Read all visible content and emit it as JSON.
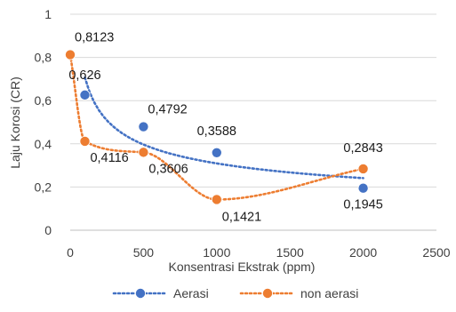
{
  "chart_data": {
    "type": "scatter",
    "xlabel": "Konsentrasi Ekstrak (ppm)",
    "ylabel": "Laju Korosi (CR)",
    "xlim": [
      0,
      2500
    ],
    "ylim": [
      0,
      1
    ],
    "x_ticks": [
      0,
      500,
      1000,
      1500,
      2000,
      2500
    ],
    "x_tick_labels": [
      "0",
      "500",
      "1000",
      "1500",
      "2000",
      "2500"
    ],
    "y_ticks": [
      0,
      0.2,
      0.4,
      0.6,
      0.8,
      1
    ],
    "y_tick_labels": [
      "0",
      "0,2",
      "0,4",
      "0,6",
      "0,8",
      "1"
    ],
    "grid": "horizontal",
    "legend_position": "bottom",
    "series": [
      {
        "name": "Aerasi",
        "color": "#4472C4",
        "line_style": "dotted",
        "line_shape": "trend",
        "points": [
          {
            "x": 100,
            "y": 0.626,
            "label": "0,626"
          },
          {
            "x": 500,
            "y": 0.4792,
            "label": "0,4792"
          },
          {
            "x": 1000,
            "y": 0.3588,
            "label": "0,3588"
          },
          {
            "x": 2000,
            "y": 0.1945,
            "label": "0,1945"
          }
        ]
      },
      {
        "name": "non aerasi",
        "color": "#ED7D31",
        "line_style": "dotted",
        "line_shape": "smooth",
        "points": [
          {
            "x": 0,
            "y": 0.8123,
            "label": "0,8123"
          },
          {
            "x": 100,
            "y": 0.4116,
            "label": "0,4116"
          },
          {
            "x": 500,
            "y": 0.3606,
            "label": "0,3606"
          },
          {
            "x": 1000,
            "y": 0.1421,
            "label": "0,1421"
          },
          {
            "x": 2000,
            "y": 0.2843,
            "label": "0,2843"
          }
        ]
      }
    ]
  }
}
